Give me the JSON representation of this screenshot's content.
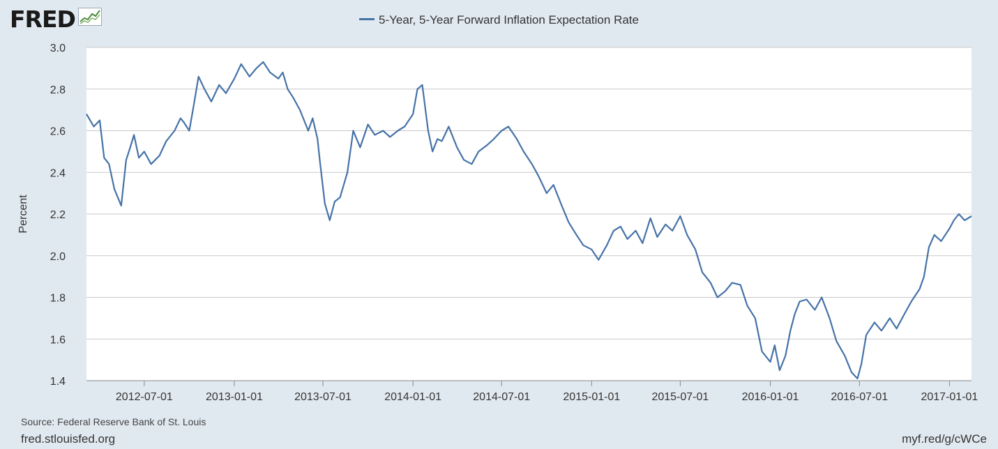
{
  "branding": {
    "logo_text": "FRED",
    "logo_icon": "line-graph-icon"
  },
  "footer": {
    "source": "Source: Federal Reserve Bank of St. Louis",
    "site": "fred.stlouisfed.org",
    "shortlink": "myf.red/g/cWCe"
  },
  "colors": {
    "line": "#4572a7",
    "background": "#e1e9f0",
    "plot": "#ffffff",
    "grid": "#c8c8c8"
  },
  "chart_data": {
    "type": "line",
    "title": "",
    "xlabel": "",
    "ylabel": "Percent",
    "ylim": [
      1.4,
      3.0
    ],
    "yticks": [
      "1.4",
      "1.6",
      "1.8",
      "2.0",
      "2.2",
      "2.4",
      "2.6",
      "2.8",
      "3.0"
    ],
    "xlim": [
      "2012-03-05",
      "2017-02-15"
    ],
    "xticks": [
      "2012-07-01",
      "2013-01-01",
      "2013-07-01",
      "2014-01-01",
      "2014-07-01",
      "2015-01-01",
      "2015-07-01",
      "2016-01-01",
      "2016-07-01",
      "2017-01-01"
    ],
    "grid": true,
    "legend_position": "top-center",
    "series": [
      {
        "name": "5-Year, 5-Year Forward Inflation Expectation Rate",
        "x": [
          "2012-03-05",
          "2012-03-20",
          "2012-04-01",
          "2012-04-10",
          "2012-04-20",
          "2012-05-01",
          "2012-05-15",
          "2012-05-25",
          "2012-06-01",
          "2012-06-10",
          "2012-06-20",
          "2012-07-01",
          "2012-07-15",
          "2012-08-01",
          "2012-08-15",
          "2012-09-01",
          "2012-09-13",
          "2012-09-20",
          "2012-10-01",
          "2012-10-10",
          "2012-10-20",
          "2012-11-01",
          "2012-11-15",
          "2012-12-01",
          "2012-12-15",
          "2013-01-01",
          "2013-01-15",
          "2013-02-01",
          "2013-02-15",
          "2013-03-01",
          "2013-03-15",
          "2013-04-01",
          "2013-04-10",
          "2013-04-20",
          "2013-05-01",
          "2013-05-15",
          "2013-06-01",
          "2013-06-10",
          "2013-06-20",
          "2013-06-25",
          "2013-07-05",
          "2013-07-15",
          "2013-07-25",
          "2013-08-05",
          "2013-08-20",
          "2013-09-01",
          "2013-09-15",
          "2013-10-01",
          "2013-10-15",
          "2013-11-01",
          "2013-11-15",
          "2013-12-01",
          "2013-12-15",
          "2014-01-01",
          "2014-01-10",
          "2014-01-20",
          "2014-02-01",
          "2014-02-10",
          "2014-02-20",
          "2014-03-01",
          "2014-03-15",
          "2014-04-01",
          "2014-04-15",
          "2014-05-01",
          "2014-05-15",
          "2014-06-01",
          "2014-06-15",
          "2014-07-01",
          "2014-07-15",
          "2014-08-01",
          "2014-08-15",
          "2014-09-01",
          "2014-09-15",
          "2014-10-01",
          "2014-10-15",
          "2014-11-01",
          "2014-11-15",
          "2014-12-01",
          "2014-12-15",
          "2015-01-01",
          "2015-01-15",
          "2015-02-01",
          "2015-02-15",
          "2015-03-01",
          "2015-03-15",
          "2015-04-01",
          "2015-04-15",
          "2015-05-01",
          "2015-05-15",
          "2015-06-01",
          "2015-06-15",
          "2015-07-01",
          "2015-07-15",
          "2015-08-01",
          "2015-08-15",
          "2015-09-01",
          "2015-09-15",
          "2015-10-01",
          "2015-10-15",
          "2015-11-01",
          "2015-11-15",
          "2015-12-01",
          "2015-12-15",
          "2016-01-01",
          "2016-01-10",
          "2016-01-20",
          "2016-02-01",
          "2016-02-11",
          "2016-02-20",
          "2016-03-01",
          "2016-03-15",
          "2016-04-01",
          "2016-04-15",
          "2016-05-01",
          "2016-05-15",
          "2016-06-01",
          "2016-06-15",
          "2016-06-27",
          "2016-07-05",
          "2016-07-15",
          "2016-08-01",
          "2016-08-15",
          "2016-09-01",
          "2016-09-15",
          "2016-10-01",
          "2016-10-15",
          "2016-11-01",
          "2016-11-10",
          "2016-11-20",
          "2016-12-01",
          "2016-12-15",
          "2017-01-01",
          "2017-01-10",
          "2017-01-20",
          "2017-02-01",
          "2017-02-15"
        ],
        "y": [
          2.68,
          2.62,
          2.65,
          2.47,
          2.44,
          2.32,
          2.24,
          2.46,
          2.51,
          2.58,
          2.47,
          2.5,
          2.44,
          2.48,
          2.55,
          2.6,
          2.66,
          2.64,
          2.6,
          2.72,
          2.86,
          2.8,
          2.74,
          2.82,
          2.78,
          2.85,
          2.92,
          2.86,
          2.9,
          2.93,
          2.88,
          2.85,
          2.88,
          2.8,
          2.76,
          2.7,
          2.6,
          2.66,
          2.56,
          2.45,
          2.25,
          2.17,
          2.26,
          2.28,
          2.4,
          2.6,
          2.52,
          2.63,
          2.58,
          2.6,
          2.57,
          2.6,
          2.62,
          2.68,
          2.8,
          2.82,
          2.6,
          2.5,
          2.56,
          2.55,
          2.62,
          2.52,
          2.46,
          2.44,
          2.5,
          2.53,
          2.56,
          2.6,
          2.62,
          2.56,
          2.5,
          2.44,
          2.38,
          2.3,
          2.34,
          2.24,
          2.16,
          2.1,
          2.05,
          2.03,
          1.98,
          2.05,
          2.12,
          2.14,
          2.08,
          2.12,
          2.06,
          2.18,
          2.09,
          2.15,
          2.12,
          2.19,
          2.1,
          2.03,
          1.92,
          1.87,
          1.8,
          1.83,
          1.87,
          1.86,
          1.76,
          1.7,
          1.54,
          1.49,
          1.57,
          1.45,
          1.52,
          1.64,
          1.72,
          1.78,
          1.79,
          1.74,
          1.8,
          1.7,
          1.59,
          1.52,
          1.44,
          1.41,
          1.48,
          1.62,
          1.68,
          1.64,
          1.7,
          1.65,
          1.72,
          1.78,
          1.84,
          1.9,
          2.04,
          2.1,
          2.07,
          2.13,
          2.17,
          2.2,
          2.17,
          2.19
        ]
      }
    ]
  }
}
